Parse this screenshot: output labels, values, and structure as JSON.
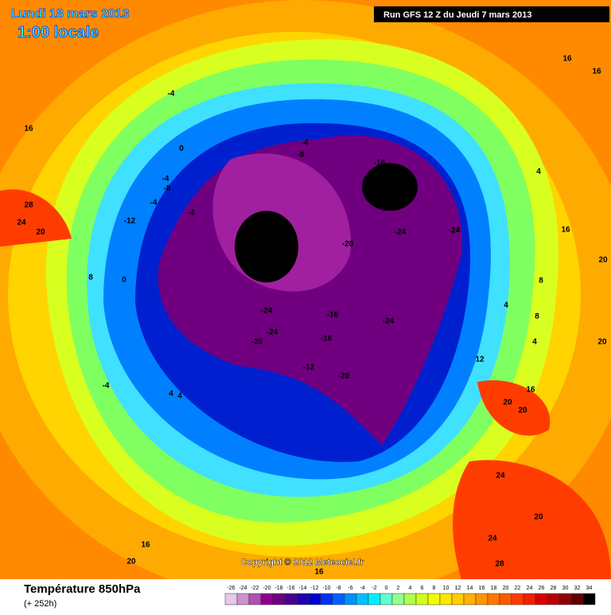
{
  "header": {
    "date": "Lundi 18 mars 2013",
    "time": "1:00 locale",
    "run": "Run GFS 12 Z du Jeudi 7 mars 2013"
  },
  "copyright": "Copyright © 2012 Meteociel.fr",
  "footer": {
    "title": "Température 850hPa",
    "lead": "(+ 252h)"
  },
  "scale": {
    "values": [
      -26,
      -24,
      -22,
      -20,
      -18,
      -16,
      -14,
      -12,
      -10,
      -8,
      -6,
      -4,
      -2,
      0,
      2,
      4,
      6,
      8,
      10,
      12,
      14,
      16,
      18,
      20,
      22,
      24,
      26,
      28,
      30,
      32,
      34
    ],
    "colors": [
      "#e8c8e8",
      "#d090d0",
      "#b050b0",
      "#900090",
      "#700080",
      "#4a0090",
      "#2000b0",
      "#0000d0",
      "#0030f0",
      "#0060ff",
      "#0090ff",
      "#00c0ff",
      "#00f0ff",
      "#60ffd0",
      "#90ff90",
      "#b0ff50",
      "#d0ff20",
      "#f0ff00",
      "#ffe600",
      "#ffcc00",
      "#ffb000",
      "#ff9400",
      "#ff7800",
      "#ff5a00",
      "#ff3c00",
      "#f02000",
      "#d80000",
      "#b80000",
      "#900000",
      "#600000",
      "#000000"
    ]
  },
  "map_labels": [
    "-4",
    "0",
    "-4",
    "-8",
    "-4",
    "-8",
    "-4",
    "-4",
    "-12",
    "-16",
    "-28",
    "-28",
    "-24",
    "-24",
    "-28",
    "-20",
    "-24",
    "-24",
    "-24",
    "-24",
    "-16",
    "-20",
    "-16",
    "-24",
    "-12",
    "-20",
    "-4",
    "4",
    "4",
    "16",
    "28",
    "24",
    "20",
    "12",
    "16",
    "20",
    "20",
    "24",
    "20",
    "24",
    "28",
    "16",
    "20",
    "16",
    "16",
    "16",
    "16",
    "20",
    "20",
    "8",
    "8",
    "4",
    "4",
    "4",
    "0",
    "8"
  ]
}
